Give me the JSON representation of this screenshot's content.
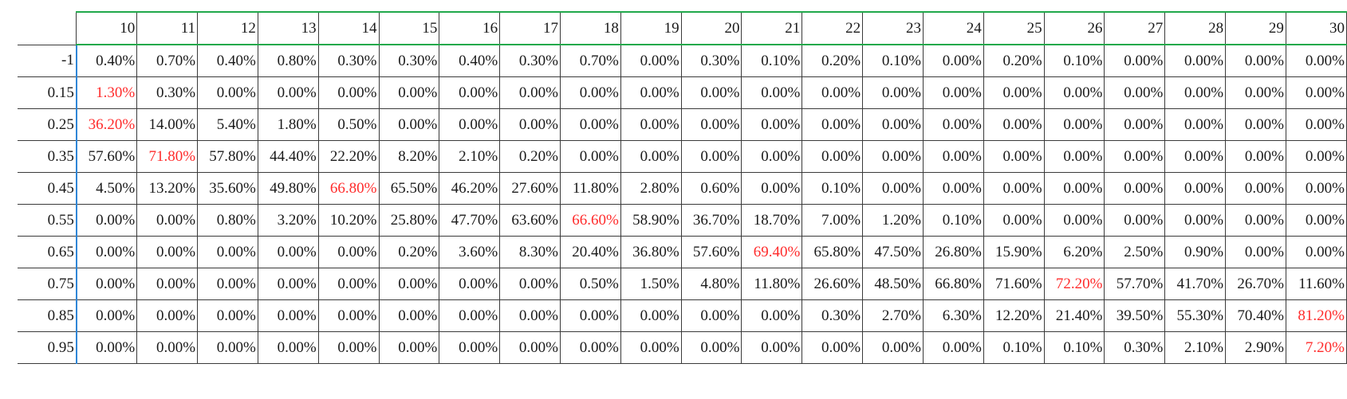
{
  "chart_data": {
    "type": "table",
    "columns": [
      "10",
      "11",
      "12",
      "13",
      "14",
      "15",
      "16",
      "17",
      "18",
      "19",
      "20",
      "21",
      "22",
      "23",
      "24",
      "25",
      "26",
      "27",
      "28",
      "29",
      "30"
    ],
    "rows": [
      {
        "label": "-1",
        "values": [
          "0.40%",
          "0.70%",
          "0.40%",
          "0.80%",
          "0.30%",
          "0.30%",
          "0.40%",
          "0.30%",
          "0.70%",
          "0.00%",
          "0.30%",
          "0.10%",
          "0.20%",
          "0.10%",
          "0.00%",
          "0.20%",
          "0.10%",
          "0.00%",
          "0.00%",
          "0.00%",
          "0.00%"
        ]
      },
      {
        "label": "0.15",
        "values": [
          "1.30%",
          "0.30%",
          "0.00%",
          "0.00%",
          "0.00%",
          "0.00%",
          "0.00%",
          "0.00%",
          "0.00%",
          "0.00%",
          "0.00%",
          "0.00%",
          "0.00%",
          "0.00%",
          "0.00%",
          "0.00%",
          "0.00%",
          "0.00%",
          "0.00%",
          "0.00%",
          "0.00%"
        ]
      },
      {
        "label": "0.25",
        "values": [
          "36.20%",
          "14.00%",
          "5.40%",
          "1.80%",
          "0.50%",
          "0.00%",
          "0.00%",
          "0.00%",
          "0.00%",
          "0.00%",
          "0.00%",
          "0.00%",
          "0.00%",
          "0.00%",
          "0.00%",
          "0.00%",
          "0.00%",
          "0.00%",
          "0.00%",
          "0.00%",
          "0.00%"
        ]
      },
      {
        "label": "0.35",
        "values": [
          "57.60%",
          "71.80%",
          "57.80%",
          "44.40%",
          "22.20%",
          "8.20%",
          "2.10%",
          "0.20%",
          "0.00%",
          "0.00%",
          "0.00%",
          "0.00%",
          "0.00%",
          "0.00%",
          "0.00%",
          "0.00%",
          "0.00%",
          "0.00%",
          "0.00%",
          "0.00%",
          "0.00%"
        ]
      },
      {
        "label": "0.45",
        "values": [
          "4.50%",
          "13.20%",
          "35.60%",
          "49.80%",
          "66.80%",
          "65.50%",
          "46.20%",
          "27.60%",
          "11.80%",
          "2.80%",
          "0.60%",
          "0.00%",
          "0.10%",
          "0.00%",
          "0.00%",
          "0.00%",
          "0.00%",
          "0.00%",
          "0.00%",
          "0.00%",
          "0.00%"
        ]
      },
      {
        "label": "0.55",
        "values": [
          "0.00%",
          "0.00%",
          "0.80%",
          "3.20%",
          "10.20%",
          "25.80%",
          "47.70%",
          "63.60%",
          "66.60%",
          "58.90%",
          "36.70%",
          "18.70%",
          "7.00%",
          "1.20%",
          "0.10%",
          "0.00%",
          "0.00%",
          "0.00%",
          "0.00%",
          "0.00%",
          "0.00%"
        ]
      },
      {
        "label": "0.65",
        "values": [
          "0.00%",
          "0.00%",
          "0.00%",
          "0.00%",
          "0.00%",
          "0.20%",
          "3.60%",
          "8.30%",
          "20.40%",
          "36.80%",
          "57.60%",
          "69.40%",
          "65.80%",
          "47.50%",
          "26.80%",
          "15.90%",
          "6.20%",
          "2.50%",
          "0.90%",
          "0.00%",
          "0.00%"
        ]
      },
      {
        "label": "0.75",
        "values": [
          "0.00%",
          "0.00%",
          "0.00%",
          "0.00%",
          "0.00%",
          "0.00%",
          "0.00%",
          "0.00%",
          "0.50%",
          "1.50%",
          "4.80%",
          "11.80%",
          "26.60%",
          "48.50%",
          "66.80%",
          "71.60%",
          "72.20%",
          "57.70%",
          "41.70%",
          "26.70%",
          "11.60%"
        ]
      },
      {
        "label": "0.85",
        "values": [
          "0.00%",
          "0.00%",
          "0.00%",
          "0.00%",
          "0.00%",
          "0.00%",
          "0.00%",
          "0.00%",
          "0.00%",
          "0.00%",
          "0.00%",
          "0.00%",
          "0.30%",
          "2.70%",
          "6.30%",
          "12.20%",
          "21.40%",
          "39.50%",
          "55.30%",
          "70.40%",
          "81.20%"
        ]
      },
      {
        "label": "0.95",
        "values": [
          "0.00%",
          "0.00%",
          "0.00%",
          "0.00%",
          "0.00%",
          "0.00%",
          "0.00%",
          "0.00%",
          "0.00%",
          "0.00%",
          "0.00%",
          "0.00%",
          "0.00%",
          "0.00%",
          "0.00%",
          "0.10%",
          "0.10%",
          "0.30%",
          "2.10%",
          "2.90%",
          "7.20%"
        ]
      }
    ],
    "highlighted": [
      {
        "row": 1,
        "col": 0
      },
      {
        "row": 2,
        "col": 0
      },
      {
        "row": 3,
        "col": 1
      },
      {
        "row": 4,
        "col": 4
      },
      {
        "row": 5,
        "col": 8
      },
      {
        "row": 6,
        "col": 11
      },
      {
        "row": 7,
        "col": 16
      },
      {
        "row": 8,
        "col": 20
      },
      {
        "row": 9,
        "col": 20
      }
    ],
    "colors": {
      "text": "#1a1a1a",
      "highlight": "#ff2b2b",
      "header_border": "#21a94b",
      "row_header_border": "#2f86d6",
      "grid": "#3a3a3a"
    }
  }
}
